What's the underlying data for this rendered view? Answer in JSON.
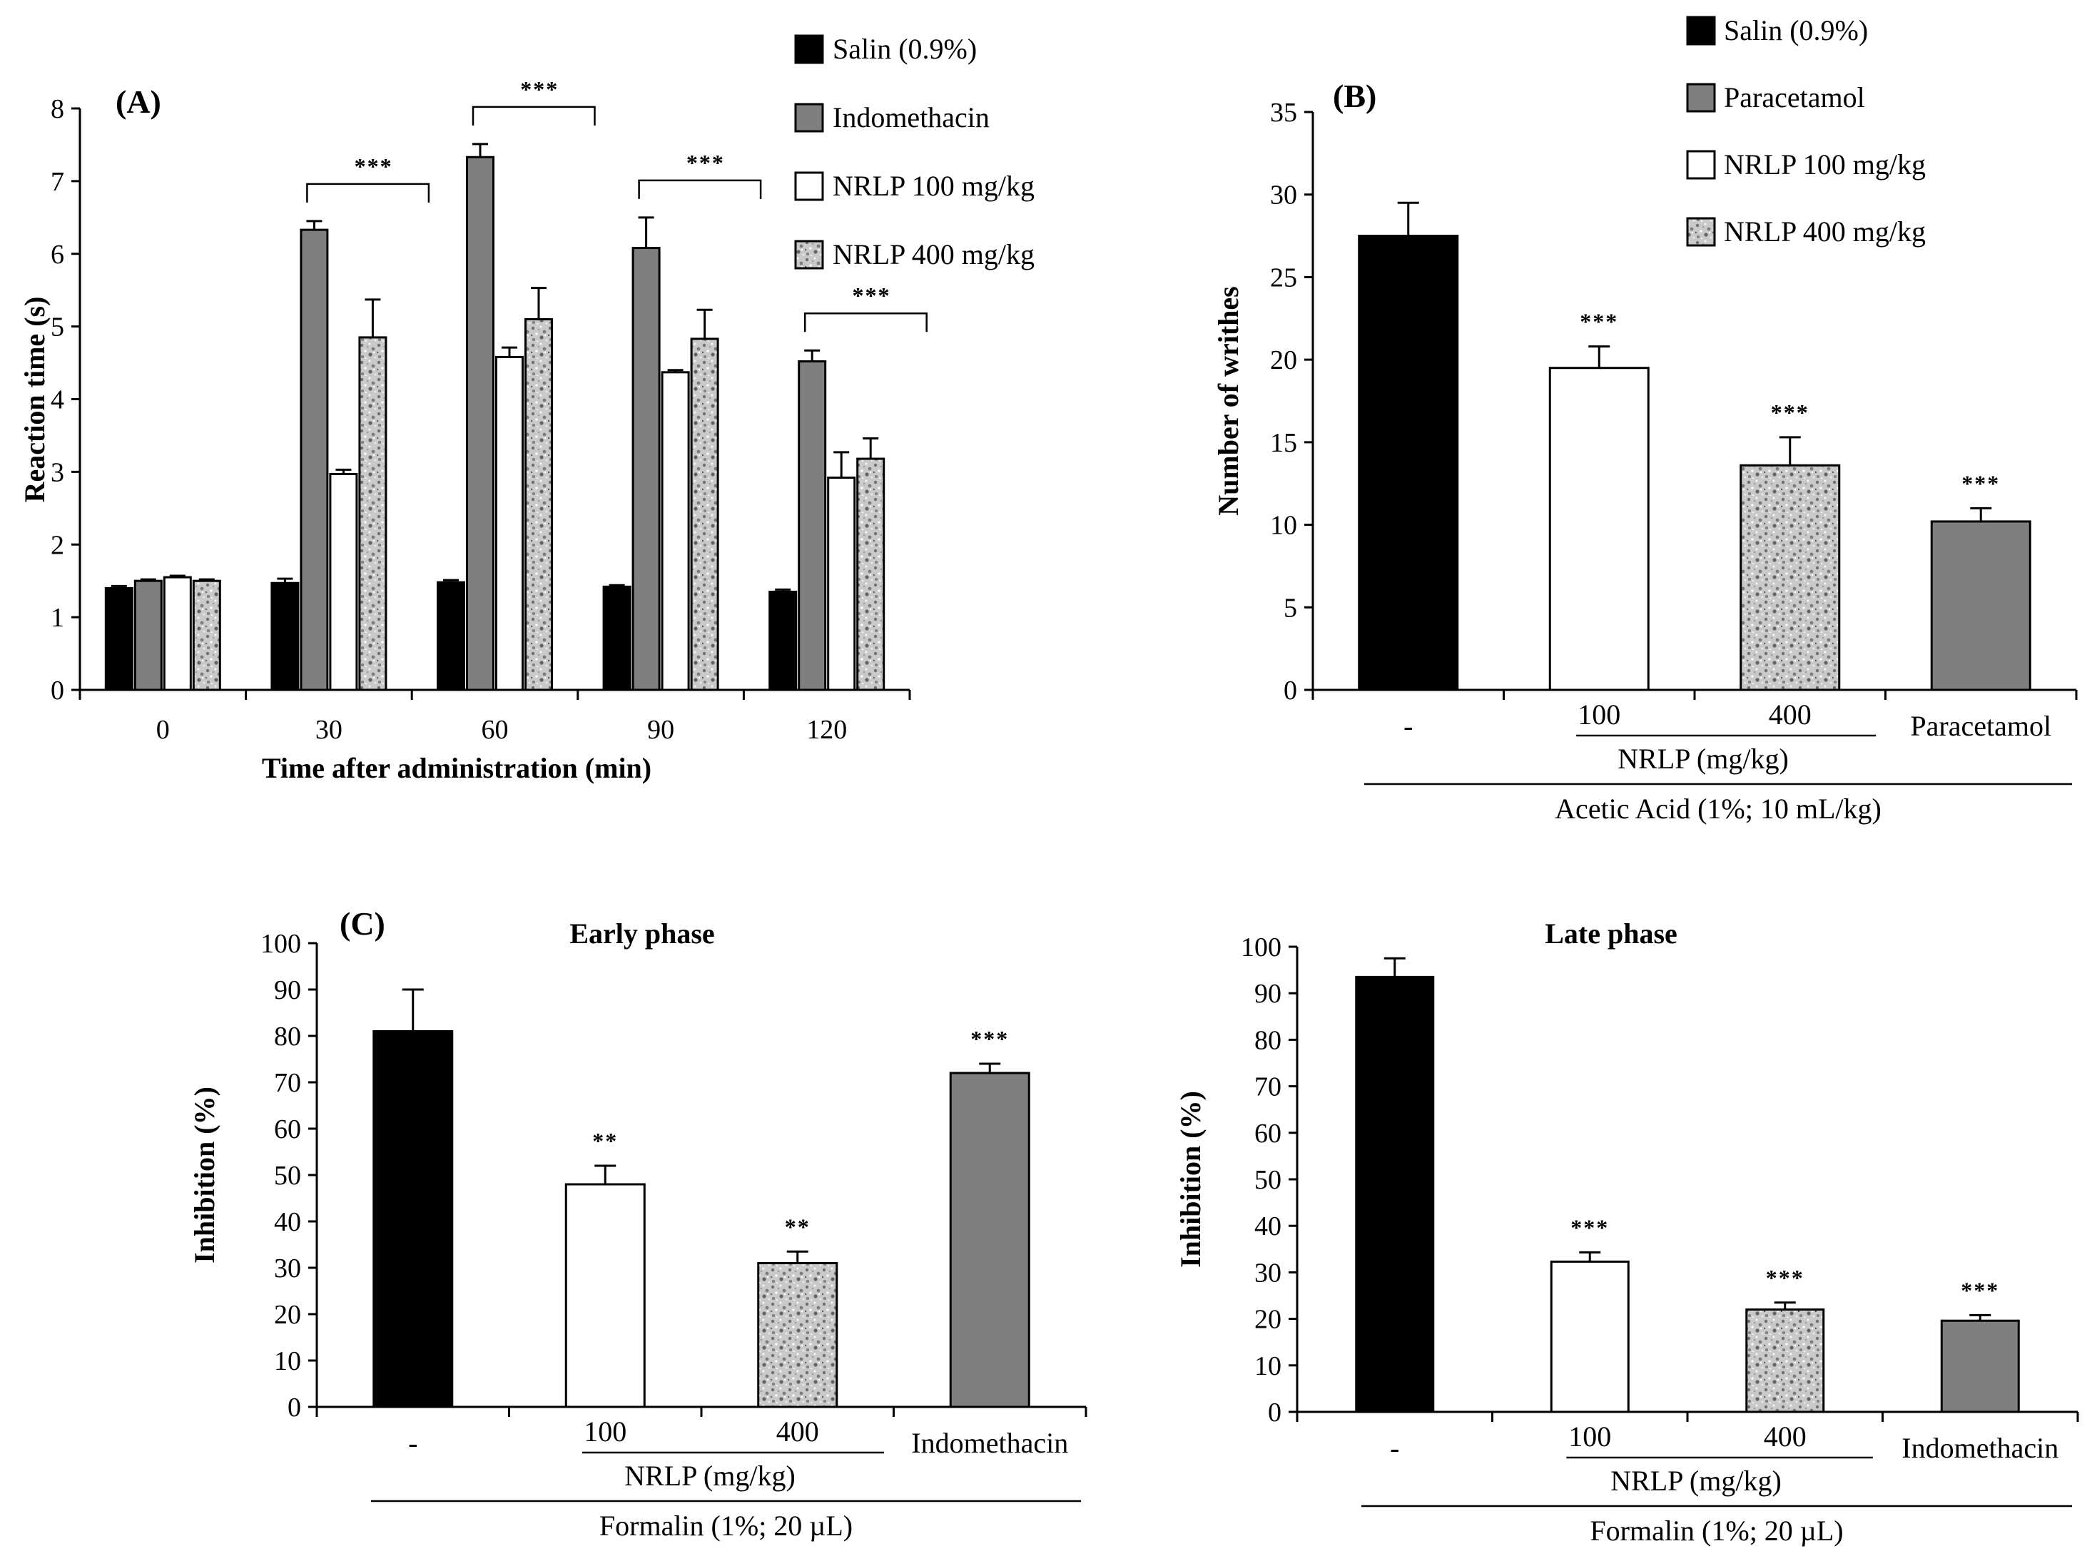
{
  "chart_data": [
    {
      "id": "A",
      "type": "bar",
      "panel_label": "(A)",
      "xlabel": "Time after administration (min)",
      "ylabel": "Reaction time (s)",
      "ylim": [
        0,
        8
      ],
      "yticks": [
        "0",
        "1",
        "2",
        "3",
        "4",
        "5",
        "6",
        "7",
        "8"
      ],
      "categories": [
        "0",
        "30",
        "60",
        "90",
        "120"
      ],
      "series": [
        {
          "name": "Salin (0.9%)",
          "fill": "black",
          "values": [
            1.4,
            1.47,
            1.48,
            1.42,
            1.35
          ],
          "errors": [
            0.03,
            0.06,
            0.03,
            0.02,
            0.03
          ]
        },
        {
          "name": "Indomethacin",
          "fill": "gray",
          "values": [
            1.5,
            6.33,
            7.33,
            6.08,
            4.52
          ],
          "errors": [
            0.02,
            0.12,
            0.18,
            0.42,
            0.15
          ]
        },
        {
          "name": "NRLP 100 mg/kg",
          "fill": "white",
          "values": [
            1.55,
            2.97,
            4.58,
            4.37,
            2.92
          ],
          "errors": [
            0.02,
            0.06,
            0.13,
            0.03,
            0.35
          ]
        },
        {
          "name": "NRLP 400 mg/kg",
          "fill": "speckled",
          "values": [
            1.5,
            4.85,
            5.1,
            4.83,
            3.18
          ],
          "errors": [
            0.02,
            0.52,
            0.43,
            0.4,
            0.28
          ]
        }
      ],
      "brackets": [
        {
          "from": 1,
          "label": "***"
        },
        {
          "from": 2,
          "label": "***"
        },
        {
          "from": 3,
          "label": "***"
        },
        {
          "from": 4,
          "label": "***"
        }
      ],
      "legend": [
        "Salin (0.9%)",
        "Indomethacin",
        "NRLP 100 mg/kg",
        "NRLP 400 mg/kg"
      ]
    },
    {
      "id": "B",
      "type": "bar",
      "panel_label": "(B)",
      "ylabel": "Number of writhes",
      "ylim": [
        0,
        35
      ],
      "yticks": [
        "0",
        "5",
        "10",
        "15",
        "20",
        "25",
        "30",
        "35"
      ],
      "categories": [
        "-",
        "100",
        "400",
        "Paracetamol"
      ],
      "values": [
        27.5,
        19.5,
        13.6,
        10.2
      ],
      "errors": [
        2.0,
        1.3,
        1.7,
        0.8
      ],
      "fills": [
        "black",
        "white",
        "speckled",
        "gray"
      ],
      "significance": [
        "",
        "***",
        "***",
        "***"
      ],
      "group_label": "NRLP  (mg/kg)",
      "treatment_label": "Acetic Acid (1%; 10 mL/kg)",
      "legend": [
        "Salin (0.9%)",
        "Paracetamol",
        "NRLP 100 mg/kg",
        "NRLP 400 mg/kg"
      ]
    },
    {
      "id": "C-early",
      "type": "bar",
      "panel_label": "(C)",
      "title": "Early phase",
      "ylabel": "Inhibition (%)",
      "ylim": [
        0,
        100
      ],
      "yticks": [
        "0",
        "10",
        "20",
        "30",
        "40",
        "50",
        "60",
        "70",
        "80",
        "90",
        "100"
      ],
      "categories": [
        "-",
        "100",
        "400",
        "Indomethacin"
      ],
      "values": [
        81,
        48,
        31,
        72
      ],
      "errors": [
        9,
        4,
        2.5,
        2
      ],
      "fills": [
        "black",
        "white",
        "speckled",
        "gray"
      ],
      "significance": [
        "",
        "**",
        "**",
        "***"
      ],
      "group_label": "NRLP  (mg/kg)",
      "treatment_label": "Formalin (1%; 20 µL)"
    },
    {
      "id": "C-late",
      "type": "bar",
      "title": "Late phase",
      "ylabel": "Inhibition (%)",
      "ylim": [
        0,
        100
      ],
      "yticks": [
        "0",
        "10",
        "20",
        "30",
        "40",
        "50",
        "60",
        "70",
        "80",
        "90",
        "100"
      ],
      "categories": [
        "-",
        "100",
        "400",
        "Indomethacin"
      ],
      "values": [
        93.5,
        32.3,
        22,
        19.6
      ],
      "errors": [
        4,
        2,
        1.5,
        1.2
      ],
      "fills": [
        "black",
        "white",
        "speckled",
        "gray"
      ],
      "significance": [
        "",
        "***",
        "***",
        "***"
      ],
      "group_label": "NRLP  (mg/kg)",
      "treatment_label": "Formalin (1%; 20 µL)"
    }
  ]
}
